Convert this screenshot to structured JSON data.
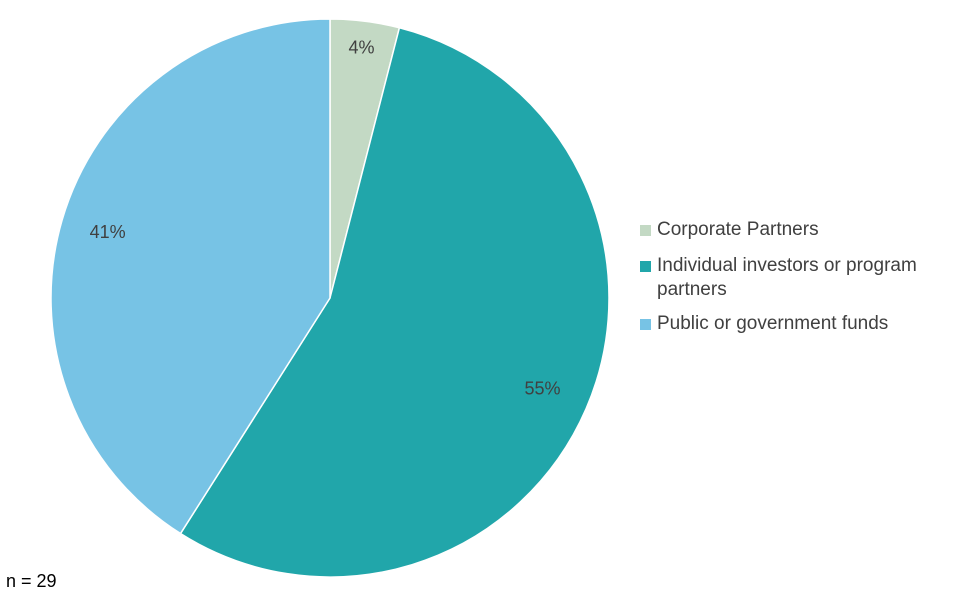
{
  "chart_data": {
    "type": "pie",
    "slices": [
      {
        "label": "Corporate Partners",
        "value": 4,
        "value_label": "4%",
        "color": "#c3d9c4"
      },
      {
        "label": "Individual investors or program partners",
        "value": 55,
        "value_label": "55%",
        "color": "#21a6aa"
      },
      {
        "label": "Public or government funds",
        "value": 41,
        "value_label": "41%",
        "color": "#77c3e5"
      }
    ],
    "start_angle": "12 o'clock",
    "direction": "clockwise",
    "legend_position": "right",
    "border_color": "#ffffff"
  },
  "footnote": "n = 29"
}
